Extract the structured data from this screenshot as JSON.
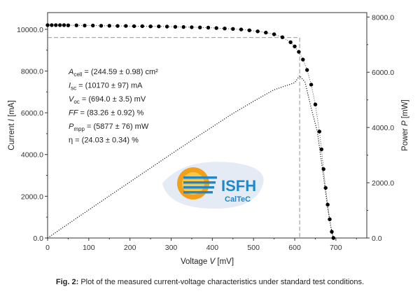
{
  "chart_data": {
    "type": "scatter",
    "xlabel": "Voltage V [mV]",
    "ylabel_left": "Current I [mA]",
    "ylabel_right": "Power P [mW]",
    "xlim": [
      0,
      775
    ],
    "ylim_left": [
      0,
      10800
    ],
    "ylim_right": [
      0,
      8160
    ],
    "x_ticks": [
      "0",
      "100",
      "200",
      "300",
      "400",
      "500",
      "600",
      "700"
    ],
    "y_left_ticks": [
      "0.0",
      "2000.0",
      "4000.0",
      "6000.0",
      "8000.0",
      "10000.0"
    ],
    "y_right_ticks": [
      "0.0",
      "2000.0",
      "4000.0",
      "6000.0",
      "8000.0"
    ],
    "annotations": [
      "A_cell = (244.59 ± 0.98) cm²",
      "I_sc = (10170 ± 97) mA",
      "V_oc = (694.0 ± 3.5) mV",
      "FF = (83.26 ± 0.92) %",
      "P_mpp = (5877 ± 76) mW",
      "η = (24.03 ± 0.34) %"
    ],
    "series": [
      {
        "name": "Current",
        "axis": "left",
        "x": [
          0,
          10,
          20,
          30,
          40,
          50,
          70,
          90,
          110,
          130,
          150,
          170,
          190,
          210,
          230,
          250,
          270,
          290,
          310,
          330,
          350,
          370,
          390,
          410,
          430,
          450,
          470,
          490,
          510,
          530,
          550,
          570,
          590,
          600,
          610,
          620,
          630,
          640,
          650,
          660,
          665,
          670,
          675,
          680,
          685,
          690,
          694
        ],
        "y": [
          10200,
          10200,
          10200,
          10200,
          10200,
          10190,
          10190,
          10180,
          10180,
          10170,
          10170,
          10160,
          10160,
          10150,
          10150,
          10140,
          10140,
          10130,
          10120,
          10110,
          10100,
          10090,
          10080,
          10060,
          10040,
          10020,
          9990,
          9950,
          9900,
          9840,
          9760,
          9620,
          9380,
          9180,
          8920,
          8550,
          8050,
          7350,
          6400,
          5100,
          4250,
          3300,
          2400,
          1600,
          900,
          300,
          0
        ]
      },
      {
        "name": "Power",
        "axis": "right",
        "x": [
          0,
          50,
          100,
          150,
          200,
          250,
          300,
          350,
          400,
          450,
          500,
          550,
          575,
          600,
          612,
          625,
          640,
          655,
          670,
          680,
          690,
          694
        ],
        "y": [
          0,
          509,
          1018,
          1525,
          2031,
          2535,
          3038,
          3535,
          4024,
          4509,
          4950,
          5368,
          5494,
          5620,
          5877,
          5650,
          4700,
          3850,
          2210,
          1090,
          207,
          0
        ]
      }
    ],
    "mpp": {
      "voltage": 612,
      "current": 9600
    }
  },
  "logo": {
    "line1": "ISFH",
    "line2": "CalTeC"
  },
  "caption": {
    "bold": "Fig. 2:",
    "text": " Plot of the measured current-voltage characteristics under standard test conditions."
  },
  "colors": {
    "logo_blue": "#1e88c8",
    "logo_orange": "#f3a018",
    "markers": "#000000"
  }
}
